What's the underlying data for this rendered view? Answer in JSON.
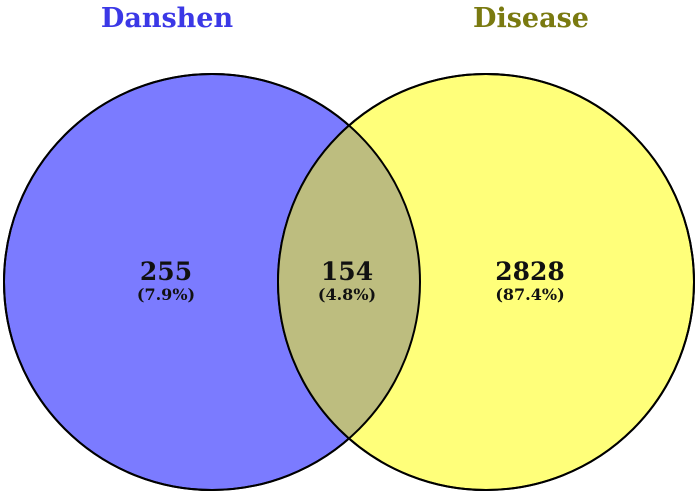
{
  "sets": {
    "left": {
      "name": "Danshen",
      "name_color": "#3b38e6",
      "fill_color": "#7b7bff",
      "only_count": "255",
      "only_percent": "(7.9%)"
    },
    "right": {
      "name": "Disease",
      "name_color": "#7a7a10",
      "fill_color": "#ffff7a",
      "only_count": "2828",
      "only_percent": "(87.4%)"
    },
    "intersection": {
      "fill_color": "#bdbd7f",
      "count": "154",
      "percent": "(4.8%)"
    }
  },
  "outline_color": "#000000"
}
